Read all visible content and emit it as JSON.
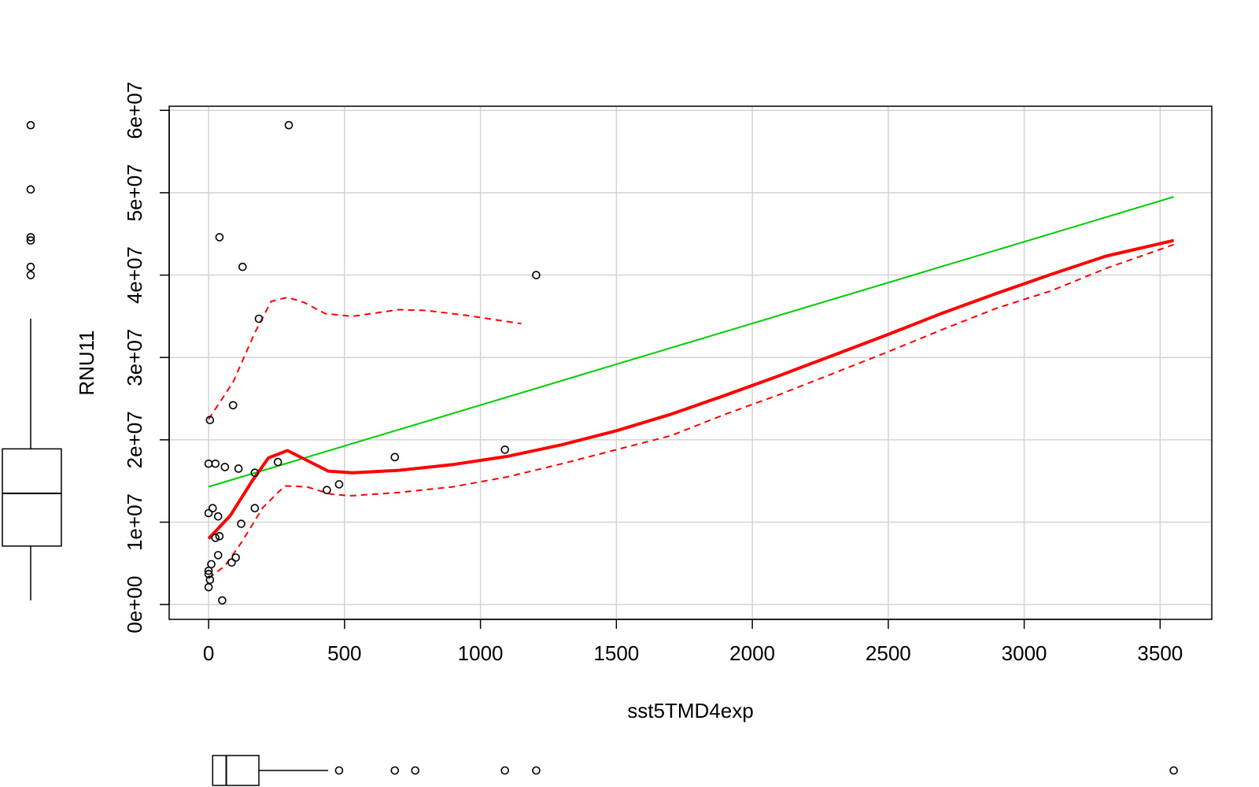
{
  "chart_data": {
    "type": "scatter",
    "xlabel": "sst5TMD4exp",
    "ylabel": "RNU11",
    "xlim": [
      -145,
      3690
    ],
    "ylim": [
      -1800000,
      60500000
    ],
    "x_ticks": [
      0,
      500,
      1000,
      1500,
      2000,
      2500,
      3000,
      3500
    ],
    "x_tick_labels": [
      "0",
      "500",
      "1000",
      "1500",
      "2000",
      "2500",
      "3000",
      "3500"
    ],
    "y_ticks": [
      0,
      10000000,
      20000000,
      30000000,
      40000000,
      50000000,
      60000000
    ],
    "y_tick_labels": [
      "0e+00",
      "1e+07",
      "2e+07",
      "3e+07",
      "4e+07",
      "5e+07",
      "6e+07"
    ],
    "grid": true,
    "colors": {
      "points": "#000000",
      "regression": "#00cc00",
      "smooth": "#ff0000",
      "grid": "#d3d3d3"
    },
    "points": [
      [
        295,
        58200000
      ],
      [
        40,
        44600000
      ],
      [
        125,
        41000000
      ],
      [
        1205,
        40000000
      ],
      [
        185,
        34700000
      ],
      [
        90,
        24200000
      ],
      [
        5,
        22400000
      ],
      [
        1090,
        18800000
      ],
      [
        685,
        17900000
      ],
      [
        0,
        17100000
      ],
      [
        25,
        17100000
      ],
      [
        60,
        16700000
      ],
      [
        110,
        16500000
      ],
      [
        170,
        16000000
      ],
      [
        255,
        17300000
      ],
      [
        480,
        14600000
      ],
      [
        435,
        13900000
      ],
      [
        15,
        11700000
      ],
      [
        170,
        11700000
      ],
      [
        0,
        11100000
      ],
      [
        35,
        10700000
      ],
      [
        120,
        9800000
      ],
      [
        40,
        8300000
      ],
      [
        25,
        8100000
      ],
      [
        35,
        6000000
      ],
      [
        100,
        5700000
      ],
      [
        85,
        5100000
      ],
      [
        10,
        4900000
      ],
      [
        0,
        4100000
      ],
      [
        0,
        3700000
      ],
      [
        5,
        3000000
      ],
      [
        0,
        2100000
      ],
      [
        50,
        500000
      ]
    ],
    "regression_line": [
      [
        0,
        14300000
      ],
      [
        3550,
        49500000
      ]
    ],
    "smooth_line": [
      [
        0,
        8000000
      ],
      [
        80,
        10800000
      ],
      [
        160,
        15000000
      ],
      [
        220,
        17800000
      ],
      [
        290,
        18700000
      ],
      [
        350,
        17700000
      ],
      [
        440,
        16200000
      ],
      [
        530,
        16000000
      ],
      [
        700,
        16300000
      ],
      [
        900,
        17000000
      ],
      [
        1100,
        18000000
      ],
      [
        1300,
        19400000
      ],
      [
        1500,
        21100000
      ],
      [
        1700,
        23100000
      ],
      [
        1900,
        25400000
      ],
      [
        2100,
        27800000
      ],
      [
        2300,
        30300000
      ],
      [
        2500,
        32800000
      ],
      [
        2700,
        35400000
      ],
      [
        2900,
        37800000
      ],
      [
        3100,
        40100000
      ],
      [
        3300,
        42300000
      ],
      [
        3550,
        44200000
      ]
    ],
    "upper_band": [
      [
        0,
        22500000
      ],
      [
        90,
        27000000
      ],
      [
        170,
        33000000
      ],
      [
        230,
        36800000
      ],
      [
        290,
        37300000
      ],
      [
        350,
        36700000
      ],
      [
        430,
        35300000
      ],
      [
        530,
        35000000
      ],
      [
        700,
        35800000
      ],
      [
        800,
        35700000
      ],
      [
        950,
        35100000
      ],
      [
        1150,
        34100000
      ]
    ],
    "lower_band": [
      [
        0,
        3200000
      ],
      [
        60,
        4700000
      ],
      [
        120,
        7500000
      ],
      [
        200,
        11800000
      ],
      [
        280,
        14400000
      ],
      [
        360,
        14300000
      ],
      [
        450,
        13400000
      ],
      [
        520,
        13200000
      ],
      [
        700,
        13600000
      ],
      [
        900,
        14300000
      ],
      [
        1100,
        15500000
      ],
      [
        1300,
        17100000
      ],
      [
        1500,
        18800000
      ],
      [
        1700,
        20500000
      ],
      [
        1900,
        23100000
      ],
      [
        2100,
        25500000
      ],
      [
        2300,
        28100000
      ],
      [
        2500,
        30700000
      ],
      [
        2700,
        33400000
      ],
      [
        2900,
        36000000
      ],
      [
        3100,
        38100000
      ],
      [
        3300,
        40800000
      ],
      [
        3550,
        43700000
      ]
    ],
    "boxplot_y": {
      "whisker_low": 500000,
      "q1": 7100000,
      "median": 13500000,
      "q3": 18900000,
      "whisker_high": 34700000,
      "outliers": [
        58200000,
        50400000,
        44600000,
        44200000,
        41000000,
        40000000
      ]
    },
    "boxplot_x": {
      "whisker_low": 0,
      "q1": 15,
      "median": 65,
      "q3": 185,
      "whisker_high": 440,
      "outliers": [
        480,
        685,
        760,
        1090,
        1205,
        3550
      ]
    }
  }
}
